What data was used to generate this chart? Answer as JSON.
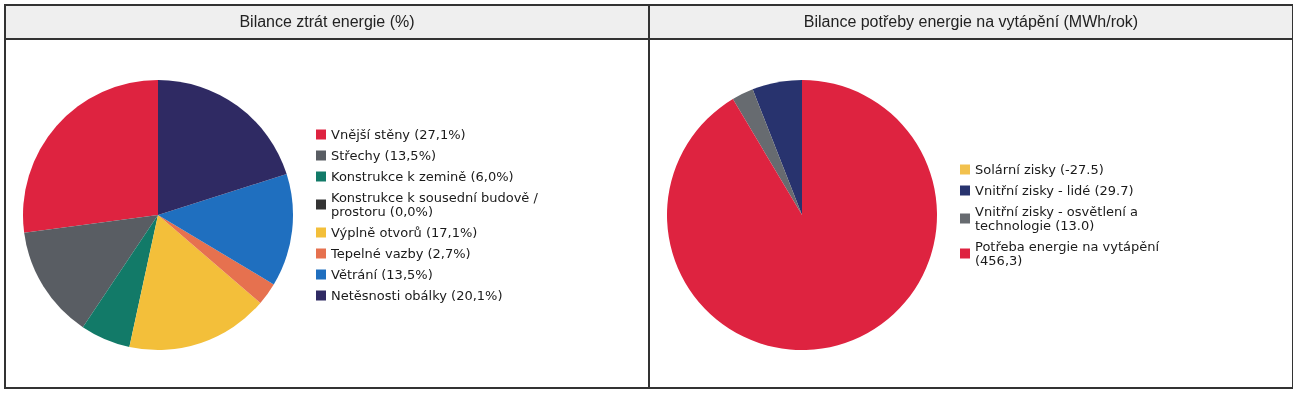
{
  "chart_data": [
    {
      "type": "pie",
      "title": "Bilance ztrát energie (%)",
      "legend": "right",
      "categories": [
        "Vnější stěny (27,1%)",
        "Střechy (13,5%)",
        "Konstrukce k zemině (6,0%)",
        "Konstrukce k sousední budově / prostoru (0,0%)",
        "Výplně otvorů (17,1%)",
        "Tepelné vazby (2,7%)",
        "Větrání (13,5%)",
        "Netěsnosti obálky (20,1%)"
      ],
      "values": [
        27.1,
        13.5,
        6.0,
        0.0,
        17.1,
        2.7,
        13.5,
        20.1
      ],
      "colors": [
        "#de2340",
        "#595d63",
        "#127a68",
        "#343434",
        "#f3bf3a",
        "#e6714f",
        "#1f6fbf",
        "#2f2a63"
      ]
    },
    {
      "type": "pie",
      "title": "Bilance potřeby energie na vytápění (MWh/rok)",
      "legend": "right",
      "categories": [
        "Solární zisky (-27.5)",
        "Vnitřní zisky - lidé (29.7)",
        "Vnitřní zisky - osvětlení a technologie (13.0)",
        "Potřeba energie na vytápění (456,3)"
      ],
      "values": [
        null,
        29.7,
        13.0,
        456.3
      ],
      "colors": [
        "#f2c14e",
        "#28336e",
        "#676b70",
        "#de2340"
      ]
    }
  ]
}
